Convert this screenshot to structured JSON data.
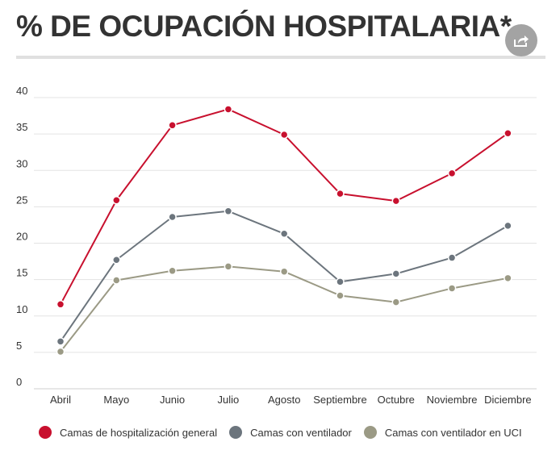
{
  "title": "% DE OCUPACIÓN HOSPITALARIA*",
  "share_icon": "share-icon",
  "chart_data": {
    "type": "line",
    "title": "% DE OCUPACIÓN HOSPITALARIA*",
    "categories": [
      "Abril",
      "Mayo",
      "Junio",
      "Julio",
      "Agosto",
      "Septiembre",
      "Octubre",
      "Noviembre",
      "Diciembre"
    ],
    "ylim": [
      0,
      40
    ],
    "yticks": [
      0,
      5,
      10,
      15,
      20,
      25,
      30,
      35,
      40
    ],
    "grid": true,
    "legend_position": "bottom",
    "series": [
      {
        "name": "Camas de hospitalización general",
        "color": "#c8102e",
        "values": [
          11.6,
          25.9,
          36.2,
          38.4,
          34.9,
          26.8,
          25.8,
          29.6,
          35.1
        ]
      },
      {
        "name": "Camas con ventilador",
        "color": "#6c757d",
        "values": [
          6.5,
          17.7,
          23.6,
          24.4,
          21.3,
          14.7,
          15.8,
          18.0,
          22.4
        ]
      },
      {
        "name": "Camas con ventilador en UCI",
        "color": "#9b9a85",
        "values": [
          5.1,
          14.9,
          16.2,
          16.8,
          16.1,
          12.8,
          11.9,
          13.8,
          15.2
        ]
      }
    ]
  }
}
